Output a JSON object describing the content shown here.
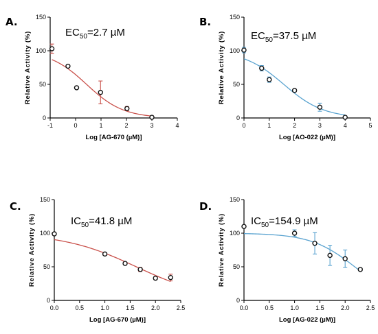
{
  "chart_data": [
    {
      "panel": "A.",
      "type": "scatter",
      "annotation": {
        "prefix": "EC",
        "sub": "50",
        "value": "=2.7 µM"
      },
      "xlabel": "Log [AG-670 (µM)]",
      "ylabel": "Relative Activity (%)",
      "xlim": [
        -1,
        4
      ],
      "ylim": [
        0,
        150
      ],
      "xticks": [
        -1,
        0,
        1,
        2,
        3,
        4
      ],
      "yticks": [
        0,
        50,
        100,
        150
      ],
      "color": "#c9504a",
      "x": [
        -0.93,
        -0.3,
        0.04,
        0.98,
        2.02,
        3.0
      ],
      "y": [
        103,
        77,
        45,
        38,
        14,
        1
      ],
      "err": [
        7,
        0,
        0,
        17,
        3,
        2
      ],
      "fit": {
        "top": 100,
        "bottom": 0,
        "logec50": 0.431,
        "hill": -0.6
      }
    },
    {
      "panel": "B.",
      "type": "scatter",
      "annotation": {
        "prefix": "EC",
        "sub": "50",
        "value": "=37.5 µM"
      },
      "xlabel": "Log [AO-022 (µM)]",
      "ylabel": "Relative Activity (%)",
      "xlim": [
        0,
        5
      ],
      "ylim": [
        0,
        150
      ],
      "xticks": [
        0,
        1,
        2,
        3,
        4,
        5
      ],
      "yticks": [
        0,
        50,
        100,
        150
      ],
      "color": "#5aa3d0",
      "x": [
        0.0,
        0.7,
        1.0,
        2.0,
        3.0,
        4.0
      ],
      "y": [
        101,
        74,
        57,
        41,
        16,
        1
      ],
      "err": [
        4,
        4,
        4,
        2,
        6,
        2
      ],
      "fit": {
        "top": 100,
        "bottom": 0,
        "logec50": 1.574,
        "hill": -0.55
      }
    },
    {
      "panel": "C.",
      "type": "scatter",
      "annotation": {
        "prefix": "IC",
        "sub": "50",
        "value": "=41.8 µM"
      },
      "xlabel": "Log [AG-670 (µM)]",
      "ylabel": "Relative Activity (%)",
      "xlim": [
        0,
        2.5
      ],
      "ylim": [
        0,
        150
      ],
      "xticks": [
        0,
        0.5,
        1,
        1.5,
        2,
        2.5
      ],
      "xtick_labels": [
        "0.0",
        "0.5",
        "1.0",
        "1.5",
        "2.0",
        "2.5"
      ],
      "yticks": [
        0,
        50,
        100,
        150
      ],
      "color": "#c9504a",
      "x": [
        0.0,
        1.0,
        1.4,
        1.7,
        2.0,
        2.3
      ],
      "y": [
        99,
        69,
        55,
        46,
        33,
        34
      ],
      "err": [
        2,
        2,
        2,
        3,
        2,
        5
      ],
      "fit": {
        "top": 100,
        "bottom": 0,
        "logec50": 1.621,
        "hill": -0.6
      }
    },
    {
      "panel": "D.",
      "type": "scatter",
      "annotation": {
        "prefix": "IC",
        "sub": "50",
        "value": "=154.9 µM"
      },
      "xlabel": "Log [AG-022 (µM)]",
      "ylabel": "Relative Activity (%)",
      "xlim": [
        0,
        2.5
      ],
      "ylim": [
        0,
        150
      ],
      "xticks": [
        0,
        0.5,
        1,
        1.5,
        2,
        2.5
      ],
      "xtick_labels": [
        "0.0",
        "0.5",
        "1.0",
        "1.5",
        "2.0",
        "2.5"
      ],
      "yticks": [
        0,
        50,
        100,
        150
      ],
      "color": "#5aa3d0",
      "x": [
        0.0,
        1.0,
        1.4,
        1.7,
        2.0,
        2.3
      ],
      "y": [
        110,
        100,
        85,
        67,
        62,
        46
      ],
      "err": [
        0,
        5,
        16,
        15,
        13,
        2
      ],
      "fit": {
        "top": 100,
        "bottom": 0,
        "logec50": 2.19,
        "hill": -1.0
      }
    }
  ]
}
